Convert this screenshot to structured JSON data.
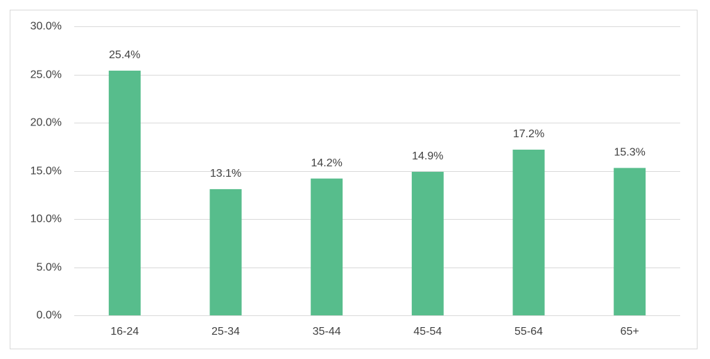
{
  "chart_data": {
    "type": "bar",
    "categories": [
      "16-24",
      "25-34",
      "35-44",
      "45-54",
      "55-64",
      "65+"
    ],
    "values": [
      25.4,
      13.1,
      14.2,
      14.9,
      17.2,
      15.3
    ],
    "value_labels": [
      "25.4%",
      "13.1%",
      "14.2%",
      "14.9%",
      "17.2%",
      "15.3%"
    ],
    "color": "#57bd8c",
    "ylim": [
      0,
      30
    ],
    "yticks": [
      {
        "value": 0,
        "label": "0.0%"
      },
      {
        "value": 5,
        "label": "5.0%"
      },
      {
        "value": 10,
        "label": "10.0%"
      },
      {
        "value": 15,
        "label": "15.0%"
      },
      {
        "value": 20,
        "label": "20.0%"
      },
      {
        "value": 25,
        "label": "25.0%"
      },
      {
        "value": 30,
        "label": "30.0%"
      }
    ],
    "grid": true
  }
}
